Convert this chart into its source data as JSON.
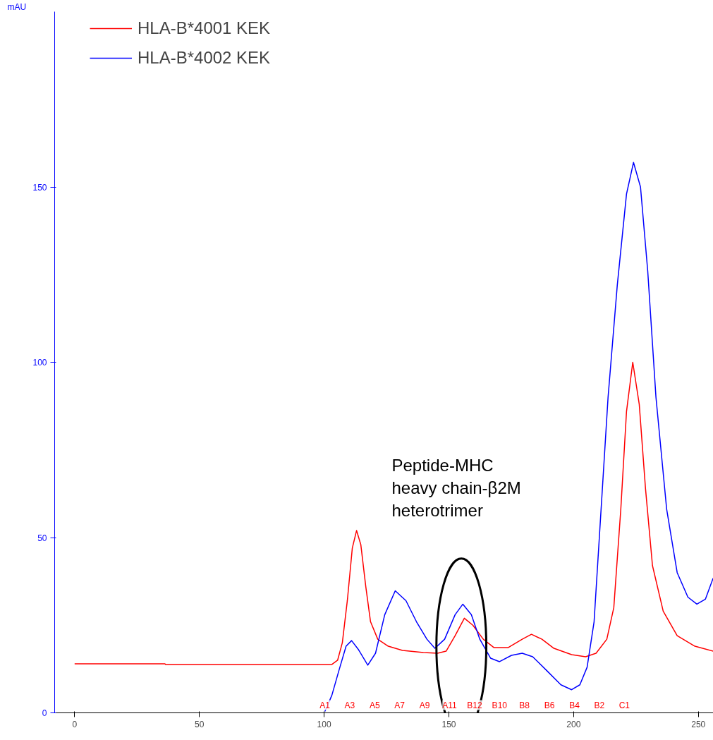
{
  "chart_data": {
    "type": "line",
    "ylabel": "mAU",
    "xlim": [
      -8,
      256
    ],
    "ylim": [
      0,
      200
    ],
    "xticks": [
      0,
      50,
      100,
      150,
      200,
      250
    ],
    "yticks": [
      0,
      50,
      100,
      150
    ],
    "grid": false,
    "legend": "top left",
    "marker": "none",
    "line_style": "solid",
    "series": [
      {
        "name": "HLA-B*4001 KEK",
        "color": "#ff0000",
        "x": [
          0,
          36.2,
          36.4,
          103.1,
          105.4,
          107.3,
          109.3,
          111.3,
          113,
          114.7,
          116.7,
          118.6,
          121.5,
          125.7,
          131.4,
          139.8,
          145.5,
          148.9,
          152.5,
          156.2,
          159.6,
          163.8,
          168.1,
          173.7,
          179.4,
          183.1,
          187.3,
          192.1,
          199.2,
          204.8,
          209,
          213.3,
          216.1,
          218.9,
          221.2,
          223.7,
          226.3,
          228.8,
          231.6,
          235.9,
          241.5,
          248.6,
          255.9
        ],
        "values": [
          14,
          14,
          13.8,
          13.8,
          15,
          20,
          32,
          47,
          52,
          48,
          36,
          26,
          21,
          19,
          17.8,
          17.2,
          17,
          17.6,
          22,
          27,
          25,
          21,
          18.6,
          18.6,
          21,
          22.4,
          21,
          18.4,
          16.6,
          16,
          17,
          21,
          30,
          58,
          86,
          100,
          88,
          64,
          42,
          29,
          22,
          19,
          17.6
        ]
      },
      {
        "name": "HLA-B*4002 KEK",
        "color": "#0000ff",
        "x": [
          100.3,
          103.1,
          105.9,
          108.8,
          111,
          113.8,
          117.5,
          120.6,
          124.3,
          128.5,
          132.8,
          137,
          141.2,
          144.4,
          148.3,
          152.5,
          155.6,
          159,
          162.4,
          166.7,
          170.3,
          175.1,
          179.4,
          183.6,
          189.3,
          194.9,
          199.2,
          202.5,
          205.4,
          208.2,
          211,
          213.8,
          217.5,
          221.2,
          224,
          226.8,
          229.7,
          233,
          237.3,
          241.5,
          245.8,
          249.4,
          252.8,
          255.9
        ],
        "values": [
          0.4,
          5,
          12,
          19,
          20.6,
          18,
          13.6,
          17,
          28,
          34.8,
          32,
          26,
          21,
          18.4,
          21,
          28,
          31,
          28,
          21,
          15.6,
          14.6,
          16.4,
          17,
          16,
          12,
          8,
          6.6,
          8,
          13,
          26,
          58,
          90,
          122,
          148,
          157,
          150,
          126,
          90,
          58,
          40,
          33,
          31,
          32.4,
          38.4
        ]
      }
    ],
    "annotations": [
      "Peptide-MHC\nheavy chain-β2M\nheterotrimer",
      "A1",
      "A3",
      "A5",
      "A7",
      "A9",
      "A11",
      "B12",
      "B10",
      "B8",
      "B6",
      "B4",
      "B2",
      "C1"
    ]
  }
}
